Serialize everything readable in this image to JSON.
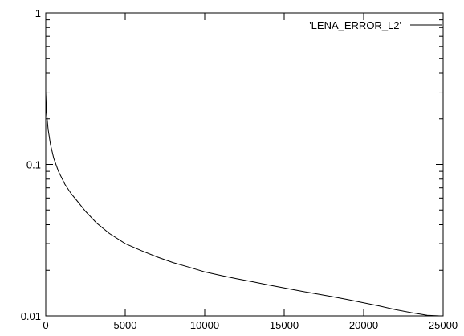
{
  "chart_data": {
    "type": "line",
    "title": "",
    "xlabel": "",
    "ylabel": "",
    "xlim": [
      0,
      25000
    ],
    "ylim": [
      0.01,
      1
    ],
    "yscale": "log",
    "grid": false,
    "legend_position": "top-right",
    "x_ticks": [
      0,
      5000,
      10000,
      15000,
      20000,
      25000
    ],
    "x_tick_labels": [
      "0",
      "5000",
      "10000",
      "15000",
      "20000",
      "25000"
    ],
    "y_ticks": [
      0.01,
      0.1,
      1
    ],
    "y_tick_labels": [
      "0.01",
      "0.1",
      "1"
    ],
    "series": [
      {
        "name": "'LENA_ERROR_L2'",
        "color": "#000000",
        "x": [
          0,
          50,
          150,
          300,
          500,
          800,
          1200,
          1600,
          2000,
          2500,
          3200,
          4000,
          5000,
          6000,
          7000,
          8000,
          9000,
          10000,
          11000,
          12000,
          13000,
          14000,
          15000,
          16000,
          17000,
          18000,
          19000,
          20000,
          21000,
          22000,
          23000,
          24000,
          24800
        ],
        "y": [
          0.3,
          0.22,
          0.17,
          0.135,
          0.11,
          0.09,
          0.074,
          0.064,
          0.057,
          0.049,
          0.041,
          0.035,
          0.03,
          0.027,
          0.0245,
          0.0225,
          0.021,
          0.0195,
          0.0185,
          0.0176,
          0.0168,
          0.016,
          0.0153,
          0.0146,
          0.014,
          0.0134,
          0.0128,
          0.0122,
          0.0116,
          0.011,
          0.0105,
          0.0101,
          0.01
        ]
      }
    ]
  }
}
